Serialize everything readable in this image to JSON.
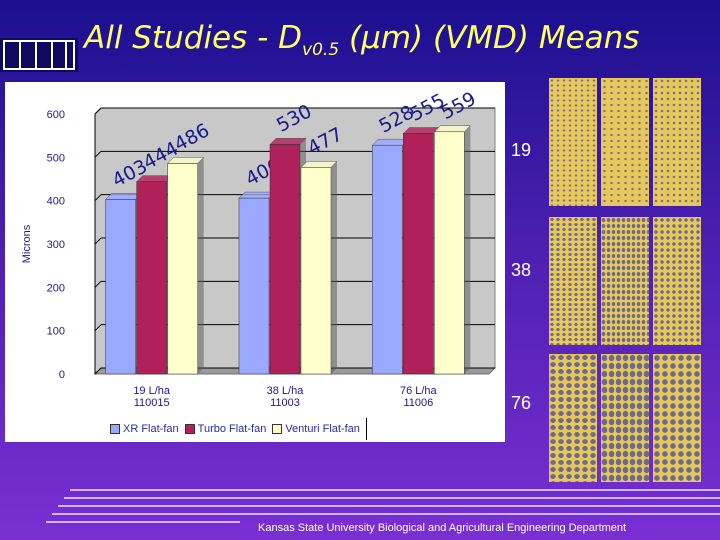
{
  "title": {
    "main": "All Studies - D",
    "subscript": "v0.5",
    "rest": " (µm) (VMD) Means"
  },
  "chart_data": {
    "type": "bar",
    "categories": [
      "19 L/ha",
      "38 L/ha",
      "76 L/ha"
    ],
    "category_sublabels": [
      "110015",
      "11003",
      "11006"
    ],
    "series": [
      {
        "name": "XR Flat-fan",
        "values": [
          403,
          406,
          528
        ],
        "color": "#9aa8ff"
      },
      {
        "name": "Turbo Flat-fan",
        "values": [
          444,
          530,
          555
        ],
        "color": "#b0205a"
      },
      {
        "name": "Venturi Flat-fan",
        "values": [
          486,
          477,
          559
        ],
        "color": "#ffffcc"
      }
    ],
    "ylabel": "Microns",
    "ylim": [
      0,
      600
    ],
    "yticks": [
      0,
      100,
      200,
      300,
      400,
      500,
      600
    ],
    "grid": true,
    "legend_position": "bottom"
  },
  "images": [
    {
      "label": "19"
    },
    {
      "label": "38"
    },
    {
      "label": "76"
    }
  ],
  "footer": "Kansas State University Biological and Agricultural Engineering Department"
}
